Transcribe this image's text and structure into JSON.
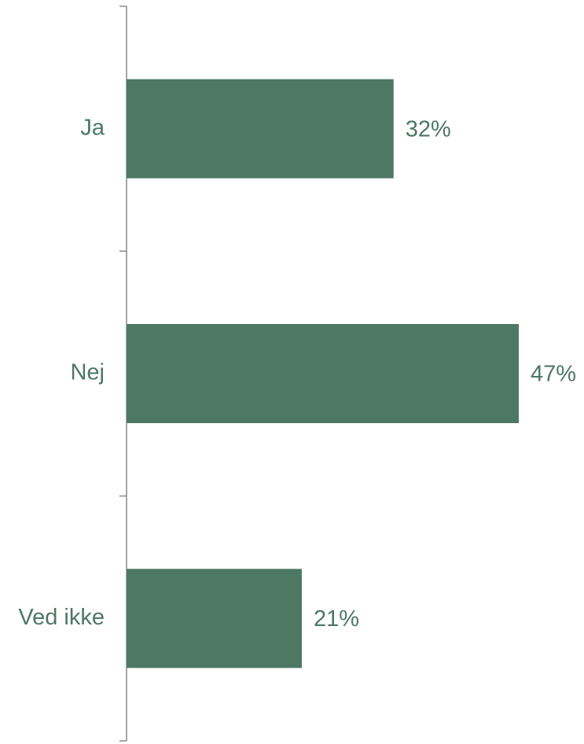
{
  "chart_data": {
    "type": "hbar",
    "categories": [
      "Ja",
      "Nej",
      "Ved ikke"
    ],
    "values": [
      32,
      47,
      21
    ],
    "value_labels": [
      "32%",
      "47%",
      "21%"
    ],
    "color": "#4d7864"
  }
}
